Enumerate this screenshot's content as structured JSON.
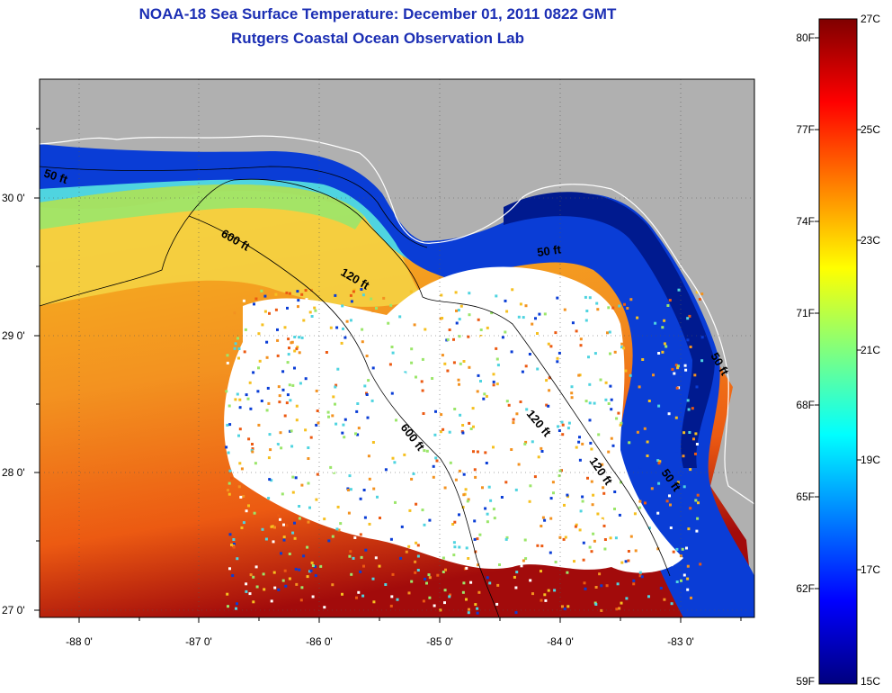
{
  "title": "NOAA-18 Sea Surface Temperature:  December 01, 2011 0822 GMT",
  "subtitle": "Rutgers Coastal Ocean Observation Lab",
  "lat_ticks": [
    "30 0'",
    "29 0'",
    "28 0'",
    "27 0'"
  ],
  "lon_ticks": [
    "-88 0'",
    "-87 0'",
    "-86 0'",
    "-85 0'",
    "-84 0'",
    "-83 0'"
  ],
  "contour_labels": [
    "50 ft",
    "600 ft",
    "120 ft",
    "50 ft",
    "600 ft",
    "120 ft",
    "120 ft",
    "50 ft",
    "50 ft"
  ],
  "colorbar": {
    "fahrenheit": [
      "80F",
      "77F",
      "74F",
      "71F",
      "68F",
      "65F",
      "62F",
      "59F"
    ],
    "celsius": [
      "27C",
      "25C",
      "23C",
      "21C",
      "19C",
      "17C",
      "15C"
    ]
  },
  "colors": {
    "title": "#1c2fb4",
    "land": "#b0b0b0",
    "cloud": "#ffffff",
    "scale_low": "#00007f",
    "scale_high": "#7f0000"
  }
}
